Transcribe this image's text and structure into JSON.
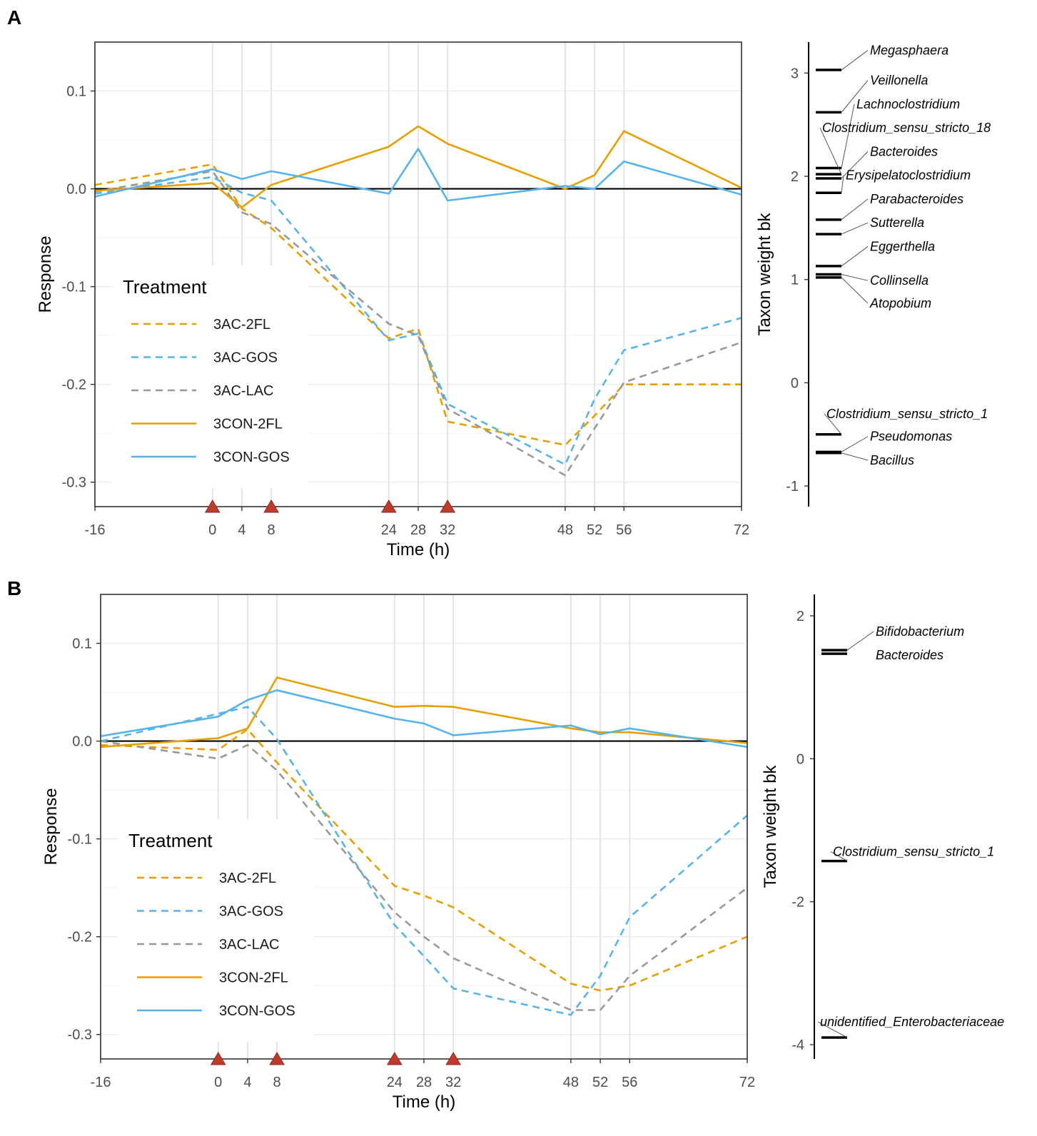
{
  "chart_data": [
    {
      "panel": "A",
      "type": "line",
      "xlabel": "Time (h)",
      "ylabel": "Response",
      "xlim": [
        -16,
        72
      ],
      "ylim": [
        -0.325,
        0.15
      ],
      "xticks": [
        -16,
        0,
        4,
        8,
        24,
        28,
        32,
        48,
        52,
        56,
        72
      ],
      "yticks": [
        0.1,
        0.0,
        -0.1,
        -0.2,
        -0.3
      ],
      "ytick_labels": [
        "0.1",
        "0.0",
        "-0.1",
        "-0.2",
        "-0.3"
      ],
      "dosing_times": [
        0,
        8,
        24,
        32
      ],
      "legend": {
        "title": "Treatment",
        "position": "bottom-left"
      },
      "series": [
        {
          "name": "3AC-2FL",
          "color": "#E69F00",
          "dash": true,
          "x": [
            -16,
            0,
            4,
            8,
            24,
            28,
            32,
            48,
            52,
            56,
            72
          ],
          "y": [
            0.004,
            0.025,
            -0.02,
            -0.04,
            -0.153,
            -0.143,
            -0.238,
            -0.262,
            -0.232,
            -0.2,
            -0.2
          ]
        },
        {
          "name": "3AC-GOS",
          "color": "#56B4E9",
          "dash": true,
          "x": [
            -16,
            0,
            4,
            8,
            24,
            28,
            32,
            48,
            52,
            56,
            72
          ],
          "y": [
            -0.005,
            0.012,
            -0.004,
            -0.012,
            -0.155,
            -0.148,
            -0.22,
            -0.282,
            -0.215,
            -0.165,
            -0.132
          ]
        },
        {
          "name": "3AC-LAC",
          "color": "#999999",
          "dash": true,
          "x": [
            -16,
            0,
            4,
            8,
            24,
            28,
            32,
            48,
            52,
            56,
            72
          ],
          "y": [
            -0.003,
            0.018,
            -0.024,
            -0.036,
            -0.138,
            -0.15,
            -0.225,
            -0.293,
            -0.245,
            -0.198,
            -0.157
          ]
        },
        {
          "name": "3CON-2FL",
          "color": "#E69F00",
          "dash": false,
          "x": [
            -16,
            0,
            4,
            8,
            24,
            28,
            32,
            48,
            52,
            56,
            72
          ],
          "y": [
            -0.002,
            0.006,
            -0.019,
            0.004,
            0.043,
            0.064,
            0.046,
            0.0,
            0.014,
            0.059,
            0.001
          ]
        },
        {
          "name": "3CON-GOS",
          "color": "#56B4E9",
          "dash": false,
          "x": [
            -16,
            0,
            4,
            8,
            24,
            28,
            32,
            48,
            52,
            56,
            72
          ],
          "y": [
            -0.008,
            0.02,
            0.01,
            0.018,
            -0.005,
            0.041,
            -0.012,
            0.003,
            0.0,
            0.028,
            -0.006
          ]
        }
      ],
      "taxon_axis": {
        "label": "Taxon weight bk",
        "ylim": [
          -1.2,
          3.3
        ],
        "ticks": [
          3,
          2,
          1,
          0,
          -1
        ],
        "tick_labels": [
          "3",
          "2",
          "1",
          "0",
          "-1"
        ],
        "taxa": [
          {
            "name": "Megasphaera",
            "weight": 3.03,
            "label_weight": 3.22
          },
          {
            "name": "Veillonella",
            "weight": 2.62,
            "label_weight": 2.93
          },
          {
            "name": "Lachnoclostridium",
            "weight": 2.08,
            "label_weight": 2.7
          },
          {
            "name": "Clostridium_sensu_stricto_18",
            "weight": 2.02,
            "label_weight": 2.47
          },
          {
            "name": "Bacteroides",
            "weight": 1.98,
            "label_weight": 2.24
          },
          {
            "name": "Erysipelatoclostridium",
            "weight": 1.84,
            "label_weight": 2.01
          },
          {
            "name": "Parabacteroides",
            "weight": 1.58,
            "label_weight": 1.78
          },
          {
            "name": "Sutterella",
            "weight": 1.44,
            "label_weight": 1.55
          },
          {
            "name": "Eggerthella",
            "weight": 1.13,
            "label_weight": 1.32
          },
          {
            "name": "Collinsella",
            "weight": 1.05,
            "label_weight": 0.99
          },
          {
            "name": "Atopobium",
            "weight": 1.02,
            "label_weight": 0.77
          },
          {
            "name": "Clostridium_sensu_stricto_1",
            "weight": -0.5,
            "label_weight": -0.3
          },
          {
            "name": "Pseudomonas",
            "weight": -0.67,
            "label_weight": -0.52
          },
          {
            "name": "Bacillus",
            "weight": -0.68,
            "label_weight": -0.75
          }
        ]
      }
    },
    {
      "panel": "B",
      "type": "line",
      "xlabel": "Time (h)",
      "ylabel": "Response",
      "xlim": [
        -16,
        72
      ],
      "ylim": [
        -0.325,
        0.15
      ],
      "xticks": [
        -16,
        0,
        4,
        8,
        24,
        28,
        32,
        48,
        52,
        56,
        72
      ],
      "yticks": [
        0.1,
        0.0,
        -0.1,
        -0.2,
        -0.3
      ],
      "ytick_labels": [
        "0.1",
        "0.0",
        "-0.1",
        "-0.2",
        "-0.3"
      ],
      "dosing_times": [
        0,
        8,
        24,
        32
      ],
      "legend": {
        "title": "Treatment",
        "position": "bottom-left"
      },
      "series": [
        {
          "name": "3AC-2FL",
          "color": "#E69F00",
          "dash": true,
          "x": [
            -16,
            0,
            4,
            8,
            24,
            28,
            32,
            48,
            52,
            56,
            72
          ],
          "y": [
            -0.004,
            -0.009,
            0.012,
            -0.022,
            -0.148,
            -0.158,
            -0.17,
            -0.248,
            -0.255,
            -0.25,
            -0.2
          ]
        },
        {
          "name": "3AC-GOS",
          "color": "#56B4E9",
          "dash": true,
          "x": [
            -16,
            0,
            4,
            8,
            24,
            28,
            32,
            48,
            52,
            56,
            72
          ],
          "y": [
            0.0,
            0.028,
            0.035,
            0.002,
            -0.188,
            -0.22,
            -0.253,
            -0.28,
            -0.24,
            -0.18,
            -0.076
          ]
        },
        {
          "name": "3AC-LAC",
          "color": "#999999",
          "dash": true,
          "x": [
            -16,
            0,
            4,
            8,
            24,
            28,
            32,
            48,
            52,
            56,
            72
          ],
          "y": [
            0.0,
            -0.018,
            -0.004,
            -0.03,
            -0.175,
            -0.2,
            -0.222,
            -0.275,
            -0.275,
            -0.24,
            -0.15
          ]
        },
        {
          "name": "3CON-2FL",
          "color": "#E69F00",
          "dash": false,
          "x": [
            -16,
            0,
            4,
            8,
            24,
            28,
            32,
            48,
            52,
            56,
            72
          ],
          "y": [
            -0.006,
            0.003,
            0.013,
            0.065,
            0.035,
            0.036,
            0.035,
            0.013,
            0.009,
            0.009,
            -0.002
          ]
        },
        {
          "name": "3CON-GOS",
          "color": "#56B4E9",
          "dash": false,
          "x": [
            -16,
            0,
            4,
            8,
            24,
            28,
            32,
            48,
            52,
            56,
            72
          ],
          "y": [
            0.005,
            0.025,
            0.042,
            0.052,
            0.023,
            0.018,
            0.006,
            0.016,
            0.007,
            0.013,
            -0.006
          ]
        }
      ],
      "taxon_axis": {
        "label": "Taxon weight bk",
        "ylim": [
          -4.2,
          2.3
        ],
        "ticks": [
          2,
          0,
          -2,
          -4
        ],
        "tick_labels": [
          "2",
          "0",
          "-2",
          "-4"
        ],
        "taxa": [
          {
            "name": "Bifidobacterium",
            "weight": 1.52,
            "label_weight": 1.78
          },
          {
            "name": "Bacteroides",
            "weight": 1.47,
            "label_weight": 1.45
          },
          {
            "name": "Clostridium_sensu_stricto_1",
            "weight": -1.43,
            "label_weight": -1.3
          },
          {
            "name": "unidentified_Enterobacteriaceae",
            "weight": -3.9,
            "label_weight": -3.68
          }
        ]
      }
    }
  ]
}
